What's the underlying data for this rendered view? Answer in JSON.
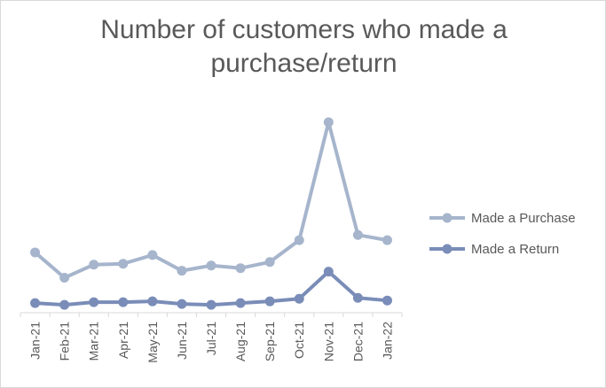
{
  "chart_data": {
    "type": "line",
    "title_line1": "Number of customers who made a",
    "title_line2": "purchase/return",
    "categories": [
      "Jan-21",
      "Feb-21",
      "Mar-21",
      "Apr-21",
      "May-21",
      "Jun-21",
      "Jul-21",
      "Aug-21",
      "Sep-21",
      "Oct-21",
      "Nov-21",
      "Dec-21",
      "Jan-22"
    ],
    "series": [
      {
        "name": "Made a Purchase",
        "color": "#a6b5cc",
        "values": [
          69,
          40,
          55,
          56,
          66,
          48,
          54,
          51,
          58,
          83,
          218,
          89,
          83
        ]
      },
      {
        "name": "Made a Return",
        "color": "#7a8db8",
        "values": [
          11,
          9,
          12,
          12,
          13,
          10,
          9,
          11,
          13,
          16,
          47,
          17,
          14
        ]
      }
    ],
    "ylim": [
      0,
      220
    ],
    "legend_position": "right",
    "grid": false
  }
}
